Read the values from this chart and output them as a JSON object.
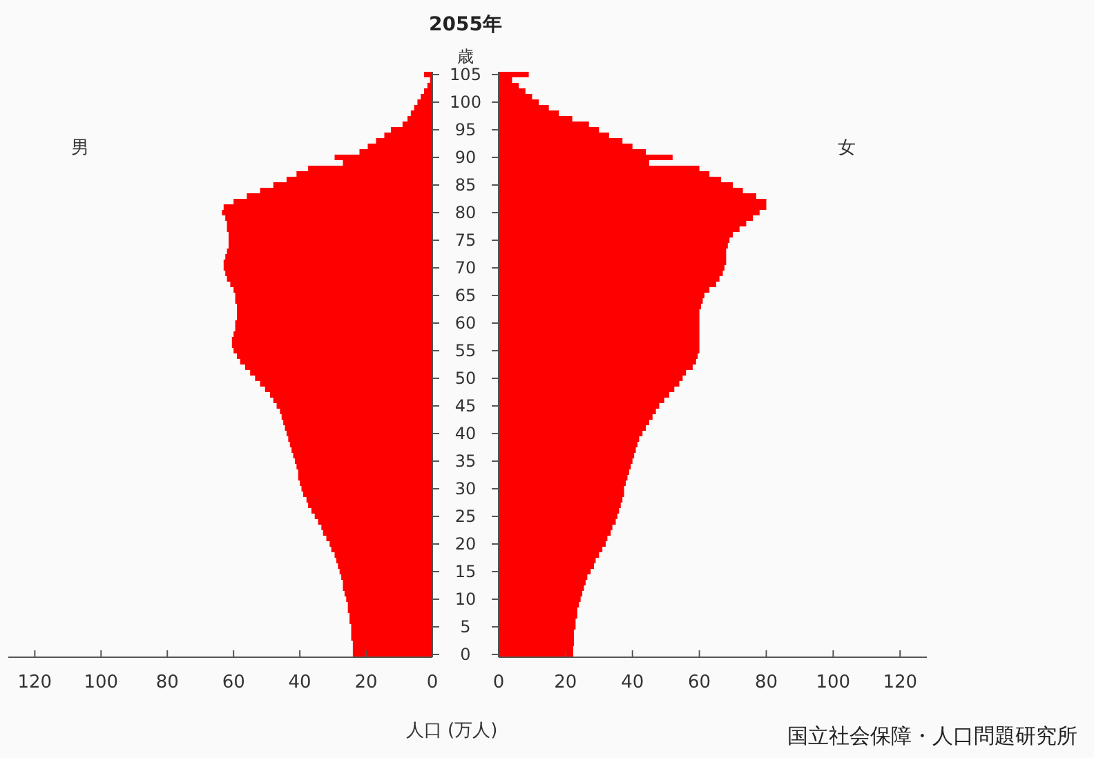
{
  "chart_data": [
    {
      "type": "bar",
      "orientation": "horizontal",
      "title": "2055年",
      "ylabel": "歳",
      "xlabel": "人口 (万人)",
      "categories": [
        "105",
        null,
        null,
        null,
        null,
        "100",
        null,
        null,
        null,
        null,
        "95",
        null,
        null,
        null,
        null,
        "90",
        null,
        null,
        null,
        null,
        "85",
        null,
        null,
        null,
        null,
        "80",
        null,
        null,
        null,
        null,
        "75",
        null,
        null,
        null,
        null,
        "70",
        null,
        null,
        null,
        null,
        "65",
        null,
        null,
        null,
        null,
        "60",
        null,
        null,
        null,
        null,
        "55",
        null,
        null,
        null,
        null,
        "50",
        null,
        null,
        null,
        null,
        "45",
        null,
        null,
        null,
        null,
        "40",
        null,
        null,
        null,
        null,
        "35",
        null,
        null,
        null,
        null,
        "30",
        null,
        null,
        null,
        null,
        "25",
        null,
        null,
        null,
        null,
        "20",
        null,
        null,
        null,
        null,
        "15",
        null,
        null,
        null,
        null,
        "10",
        null,
        null,
        null,
        null,
        "5",
        null,
        null,
        null,
        null,
        "0"
      ],
      "series": [
        {
          "name": "男",
          "color": "#ff0000",
          "values": [
            2.5,
            0.7,
            1.5,
            2.5,
            3.5,
            4.5,
            5.5,
            6.5,
            7.5,
            9,
            12.5,
            14.5,
            17,
            19.5,
            22,
            29.5,
            27,
            37.5,
            41,
            44,
            48,
            52,
            56,
            60,
            63,
            63.5,
            62.5,
            62,
            62,
            61.5,
            61.5,
            61.5,
            62,
            62.5,
            63,
            63,
            62.5,
            62,
            61,
            60,
            59.5,
            59.5,
            59,
            59,
            59,
            59.5,
            59.5,
            60,
            60.5,
            60.5,
            60,
            59,
            58,
            56.5,
            55,
            53.5,
            52,
            50.5,
            49,
            48,
            47,
            46,
            45.5,
            45,
            44.5,
            44,
            43.5,
            43,
            42.5,
            42,
            41.5,
            41,
            40.5,
            40.5,
            40,
            39.5,
            39,
            38,
            37.5,
            36.5,
            35.5,
            34.5,
            33.5,
            33,
            32,
            31,
            30.5,
            29.5,
            29,
            28.5,
            28,
            27.5,
            27,
            27,
            26.5,
            26,
            25.5,
            25.5,
            25,
            25,
            24.5,
            24.5,
            24.5,
            24,
            24,
            24
          ]
        }
      ],
      "xlim": [
        128,
        0
      ],
      "xticks": [
        120,
        100,
        80,
        60,
        40,
        20,
        0
      ],
      "tick_labels": "xy",
      "grid": false
    },
    {
      "type": "bar",
      "orientation": "horizontal",
      "categories": [
        "105",
        null,
        null,
        null,
        null,
        "100",
        null,
        null,
        null,
        null,
        "95",
        null,
        null,
        null,
        null,
        "90",
        null,
        null,
        null,
        null,
        "85",
        null,
        null,
        null,
        null,
        "80",
        null,
        null,
        null,
        null,
        "75",
        null,
        null,
        null,
        null,
        "70",
        null,
        null,
        null,
        null,
        "65",
        null,
        null,
        null,
        null,
        "60",
        null,
        null,
        null,
        null,
        "55",
        null,
        null,
        null,
        null,
        "50",
        null,
        null,
        null,
        null,
        "45",
        null,
        null,
        null,
        null,
        "40",
        null,
        null,
        null,
        null,
        "35",
        null,
        null,
        null,
        null,
        "30",
        null,
        null,
        null,
        null,
        "25",
        null,
        null,
        null,
        null,
        "20",
        null,
        null,
        null,
        null,
        "15",
        null,
        null,
        null,
        null,
        "10",
        null,
        null,
        null,
        null,
        "5",
        null,
        null,
        null,
        null,
        "0"
      ],
      "series": [
        {
          "name": "女",
          "color": "#ff0000",
          "values": [
            9,
            4,
            6,
            8,
            10,
            12,
            15,
            18,
            22,
            27,
            30,
            33,
            37,
            40,
            44,
            52,
            45,
            60,
            63,
            66.5,
            70,
            73,
            77,
            80,
            80,
            78,
            76,
            74,
            72,
            70,
            69,
            68.5,
            68,
            68,
            68,
            67.5,
            67,
            66,
            65,
            63,
            61.5,
            61,
            60.5,
            60,
            60,
            60,
            60,
            60,
            60,
            60,
            60,
            59.5,
            59,
            58,
            56,
            55,
            54,
            52.5,
            51,
            49.5,
            48,
            47,
            46,
            45,
            44,
            43,
            42,
            41.5,
            41,
            40.5,
            40,
            39.5,
            39,
            38.5,
            38,
            37.5,
            37.5,
            37,
            36.5,
            36,
            35.5,
            35,
            34,
            33.5,
            32.5,
            32,
            31,
            30,
            29,
            28.5,
            27.5,
            26.5,
            26,
            25.5,
            25,
            24.5,
            24,
            23.5,
            23.5,
            23,
            23,
            22.5,
            22.5,
            22.5,
            22.3,
            22.3
          ]
        }
      ],
      "xlim": [
        0,
        128
      ],
      "xticks": [
        0,
        20,
        40,
        60,
        80,
        100,
        120
      ],
      "tick_labels": "x",
      "grid": false,
      "annotations": [
        "国立社会保障・人口問題研究所"
      ]
    }
  ]
}
